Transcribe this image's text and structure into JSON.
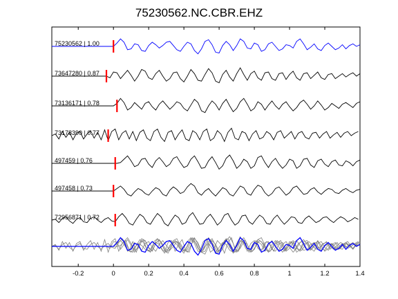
{
  "chart_data": {
    "type": "line",
    "title": "75230562.NC.CBR.EHZ",
    "xlabel": "",
    "ylabel": "",
    "xlim": [
      -0.35,
      1.4
    ],
    "xticks": [
      -0.2,
      0,
      0.2,
      0.4,
      0.6,
      0.8,
      1,
      1.2,
      1.4
    ],
    "xtick_labels": [
      "-0.2",
      "0",
      "0.2",
      "0.4",
      "0.6",
      "0.8",
      "1",
      "1.2",
      "1.4"
    ],
    "grid": false,
    "colors": {
      "primary": "#0000ff",
      "trace": "#000000",
      "stack": "#808080",
      "marker": "#ff0000"
    },
    "traces": [
      {
        "label": "75230562 | 1.00",
        "pick_time": 0.0
      },
      {
        "label": "73647280 | 0.87",
        "pick_time": -0.04
      },
      {
        "label": "73136171 | 0.78",
        "pick_time": 0.02
      },
      {
        "label": "73178390 | 0.77",
        "pick_time": -0.03
      },
      {
        "label": "497459 | 0.76",
        "pick_time": 0.01
      },
      {
        "label": "497458 | 0.73",
        "pick_time": 0.0
      },
      {
        "label": "72956871 | 0.72",
        "pick_time": 0.01
      }
    ],
    "series": [
      {
        "x": [
          -0.35,
          -0.3,
          -0.25,
          -0.2,
          -0.15,
          -0.1,
          -0.05,
          0,
          0.02,
          0.04,
          0.06,
          0.08,
          0.1,
          0.12,
          0.14,
          0.16,
          0.18,
          0.2,
          0.22,
          0.24,
          0.26,
          0.28,
          0.3,
          0.32,
          0.34,
          0.36,
          0.38,
          0.4,
          0.42,
          0.44,
          0.46,
          0.48,
          0.5,
          0.52,
          0.54,
          0.56,
          0.58,
          0.6,
          0.62,
          0.64,
          0.66,
          0.68,
          0.7,
          0.72,
          0.74,
          0.76,
          0.78,
          0.8,
          0.82,
          0.84,
          0.86,
          0.88,
          0.9,
          0.92,
          0.94,
          0.96,
          0.98,
          1,
          1.02,
          1.04,
          1.06,
          1.08,
          1.1,
          1.12,
          1.14,
          1.16,
          1.18,
          1.2,
          1.22,
          1.24,
          1.26,
          1.28,
          1.3,
          1.32,
          1.34,
          1.36,
          1.38,
          1.4
        ],
        "y": [
          0,
          0,
          0,
          0,
          0,
          0,
          0,
          0,
          0.4,
          0.9,
          0.5,
          -0.4,
          -0.3,
          0.3,
          0.2,
          -0.5,
          -0.6,
          0.1,
          0.5,
          0.2,
          -0.2,
          0.1,
          0.5,
          0.6,
          0.1,
          -0.4,
          -0.6,
          0.0,
          0.5,
          0.3,
          -0.5,
          -0.9,
          -0.3,
          0.6,
          0.8,
          0.2,
          -0.7,
          -0.8,
          0.1,
          0.6,
          0.2,
          -0.5,
          0.1,
          0.9,
          0.6,
          -0.2,
          -0.3,
          0.4,
          0.2,
          -0.6,
          -0.4,
          0.3,
          0.5,
          0.0,
          -0.5,
          -0.3,
          0.2,
          0.1,
          -0.2,
          0.6,
          0.9,
          0.3,
          -0.4,
          -0.1,
          0.3,
          -0.3,
          -0.5,
          0.1,
          0.4,
          0.0,
          -0.4,
          -0.2,
          0.2,
          -0.3,
          0.1,
          0.3,
          0.0,
          0.2
        ]
      },
      {
        "x": [
          -0.35,
          -0.3,
          -0.25,
          -0.2,
          -0.15,
          -0.1,
          -0.06,
          -0.04,
          -0.02,
          0,
          0.02,
          0.04,
          0.06,
          0.08,
          0.1,
          0.12,
          0.14,
          0.16,
          0.18,
          0.2,
          0.22,
          0.24,
          0.26,
          0.28,
          0.3,
          0.32,
          0.34,
          0.36,
          0.38,
          0.4,
          0.42,
          0.44,
          0.46,
          0.48,
          0.5,
          0.52,
          0.54,
          0.56,
          0.58,
          0.6,
          0.62,
          0.64,
          0.66,
          0.68,
          0.7,
          0.72,
          0.74,
          0.76,
          0.78,
          0.8,
          0.82,
          0.84,
          0.86,
          0.88,
          0.9,
          0.92,
          0.94,
          0.96,
          0.98,
          1,
          1.02,
          1.04,
          1.06,
          1.08,
          1.1,
          1.12,
          1.14,
          1.16,
          1.18,
          1.2,
          1.22,
          1.24,
          1.26,
          1.28,
          1.3,
          1.32,
          1.34,
          1.36,
          1.38,
          1.4
        ],
        "y": [
          0,
          0,
          0,
          0,
          0,
          0,
          0,
          0,
          -0.2,
          0.5,
          0.4,
          -0.3,
          0.2,
          0.7,
          0.1,
          -0.6,
          0.0,
          0.8,
          0.6,
          -0.2,
          -0.4,
          0.3,
          0.7,
          0.0,
          -0.6,
          -0.3,
          0.4,
          0.5,
          -0.3,
          -0.7,
          0.0,
          0.8,
          0.3,
          -0.5,
          -0.6,
          0.2,
          0.9,
          0.4,
          -0.6,
          -0.8,
          0.2,
          0.7,
          -0.1,
          -0.6,
          0.3,
          1.0,
          0.2,
          -0.5,
          0.3,
          0.6,
          -0.2,
          -0.5,
          0.4,
          0.5,
          -0.3,
          -0.5,
          0.3,
          0.4,
          -0.4,
          0.2,
          0.6,
          -0.2,
          -0.5,
          0.3,
          0.4,
          -0.3,
          0.1,
          0.5,
          -0.2,
          -0.4,
          0.2,
          0.3,
          -0.3,
          0.0,
          0.3,
          -0.1,
          0.2,
          0.4,
          0.0,
          0.3
        ]
      },
      {
        "x": [
          -0.35,
          -0.3,
          -0.25,
          -0.2,
          -0.15,
          -0.1,
          -0.05,
          0,
          0.02,
          0.04,
          0.06,
          0.08,
          0.1,
          0.12,
          0.14,
          0.16,
          0.18,
          0.2,
          0.22,
          0.24,
          0.26,
          0.28,
          0.3,
          0.32,
          0.34,
          0.36,
          0.38,
          0.4,
          0.42,
          0.44,
          0.46,
          0.48,
          0.5,
          0.52,
          0.54,
          0.56,
          0.58,
          0.6,
          0.62,
          0.64,
          0.66,
          0.68,
          0.7,
          0.72,
          0.74,
          0.76,
          0.78,
          0.8,
          0.82,
          0.84,
          0.86,
          0.88,
          0.9,
          0.92,
          0.94,
          0.96,
          0.98,
          1,
          1.02,
          1.04,
          1.06,
          1.08,
          1.1,
          1.12,
          1.14,
          1.16,
          1.18,
          1.2,
          1.22,
          1.24,
          1.26,
          1.28,
          1.3,
          1.32,
          1.34,
          1.36,
          1.38,
          1.4
        ],
        "y": [
          0,
          0,
          0,
          0,
          0,
          0,
          0,
          0,
          0.3,
          0.9,
          0.4,
          -0.5,
          -0.2,
          0.4,
          0.0,
          -0.4,
          0.3,
          0.5,
          -0.1,
          -0.5,
          0.2,
          0.6,
          0.1,
          -0.4,
          0.0,
          0.5,
          0.3,
          -0.3,
          -0.6,
          0.1,
          0.8,
          0.4,
          -0.6,
          -0.8,
          0.0,
          0.6,
          0.2,
          -0.5,
          0.3,
          0.8,
          0.0,
          -0.7,
          -0.3,
          0.5,
          0.9,
          0.2,
          -0.6,
          -0.3,
          0.5,
          0.2,
          -0.5,
          0.1,
          0.6,
          0.0,
          -0.4,
          0.2,
          0.5,
          -0.1,
          -0.6,
          -0.2,
          0.4,
          0.7,
          0.2,
          -0.4,
          0.0,
          0.6,
          0.1,
          -0.5,
          -0.2,
          0.3,
          0.0,
          -0.3,
          0.2,
          0.4,
          0.1,
          -0.2,
          0.3,
          0.5
        ]
      },
      {
        "x": [
          -0.35,
          -0.33,
          -0.31,
          -0.29,
          -0.27,
          -0.25,
          -0.23,
          -0.21,
          -0.19,
          -0.17,
          -0.15,
          -0.13,
          -0.11,
          -0.09,
          -0.07,
          -0.05,
          -0.03,
          -0.01,
          0.01,
          0.03,
          0.05,
          0.07,
          0.09,
          0.11,
          0.13,
          0.15,
          0.17,
          0.19,
          0.21,
          0.23,
          0.25,
          0.27,
          0.29,
          0.31,
          0.33,
          0.35,
          0.37,
          0.39,
          0.41,
          0.43,
          0.45,
          0.47,
          0.49,
          0.51,
          0.53,
          0.55,
          0.57,
          0.59,
          0.61,
          0.63,
          0.65,
          0.67,
          0.69,
          0.71,
          0.73,
          0.75,
          0.77,
          0.79,
          0.81,
          0.83,
          0.85,
          0.87,
          0.89,
          0.91,
          0.93,
          0.95,
          0.97,
          0.99,
          1.01,
          1.03,
          1.05,
          1.07,
          1.09,
          1.11,
          1.13,
          1.15,
          1.17,
          1.19,
          1.21,
          1.23,
          1.25,
          1.27,
          1.29,
          1.31,
          1.33,
          1.35,
          1.37,
          1.39
        ],
        "y": [
          0.0,
          0.2,
          -0.4,
          0.5,
          -0.2,
          0.4,
          -0.5,
          0.3,
          0.5,
          -0.4,
          0.2,
          0.6,
          -0.3,
          0.4,
          -0.5,
          0.7,
          -0.6,
          0.5,
          0.8,
          -0.5,
          0.3,
          0.6,
          -0.4,
          0.5,
          -0.6,
          0.4,
          0.7,
          -0.3,
          -0.6,
          0.5,
          0.8,
          -0.2,
          -0.7,
          0.4,
          0.6,
          -0.5,
          0.2,
          0.7,
          -0.4,
          -0.6,
          0.6,
          0.3,
          -0.5,
          0.5,
          0.8,
          -0.6,
          -0.3,
          0.6,
          0.2,
          -0.7,
          0.4,
          0.9,
          -0.3,
          -0.5,
          0.5,
          0.3,
          -0.6,
          0.2,
          0.6,
          -0.4,
          -0.2,
          0.5,
          0.2,
          -0.5,
          0.4,
          0.6,
          -0.3,
          0.1,
          0.5,
          -0.4,
          0.3,
          0.5,
          -0.2,
          -0.4,
          0.3,
          0.4,
          -0.3,
          0.2,
          0.5,
          -0.3,
          0.1,
          0.4,
          -0.2,
          0.3,
          0.5,
          0.0,
          0.3,
          0.5
        ]
      },
      {
        "x": [
          -0.35,
          -0.3,
          -0.25,
          -0.2,
          -0.15,
          -0.1,
          -0.05,
          0,
          0.02,
          0.04,
          0.06,
          0.08,
          0.1,
          0.12,
          0.14,
          0.16,
          0.18,
          0.2,
          0.22,
          0.24,
          0.26,
          0.28,
          0.3,
          0.32,
          0.34,
          0.36,
          0.38,
          0.4,
          0.42,
          0.44,
          0.46,
          0.48,
          0.5,
          0.52,
          0.54,
          0.56,
          0.58,
          0.6,
          0.62,
          0.64,
          0.66,
          0.68,
          0.7,
          0.72,
          0.74,
          0.76,
          0.78,
          0.8,
          0.82,
          0.84,
          0.86,
          0.88,
          0.9,
          0.92,
          0.94,
          0.96,
          0.98,
          1,
          1.02,
          1.04,
          1.06,
          1.08,
          1.1,
          1.12,
          1.14,
          1.16,
          1.18,
          1.2,
          1.22,
          1.24,
          1.26,
          1.28,
          1.3,
          1.32,
          1.34,
          1.36,
          1.38,
          1.4
        ],
        "y": [
          0,
          0,
          0,
          0,
          0,
          0,
          0,
          0,
          0,
          0.1,
          0.5,
          0.9,
          0.3,
          -0.4,
          -0.2,
          0.5,
          0.6,
          -0.1,
          -0.5,
          0.3,
          0.7,
          0.2,
          -0.4,
          -0.1,
          0.6,
          0.8,
          0.1,
          -0.5,
          -0.3,
          0.5,
          0.9,
          0.2,
          -0.6,
          -0.5,
          0.3,
          0.8,
          0.1,
          -0.7,
          -0.3,
          0.6,
          1.0,
          0.3,
          -0.6,
          -0.2,
          0.5,
          0.2,
          -0.6,
          -0.3,
          0.7,
          0.9,
          0.1,
          -0.5,
          0.2,
          0.6,
          -0.1,
          -0.6,
          -0.2,
          0.5,
          0.3,
          -0.6,
          -0.3,
          0.5,
          0.6,
          -0.2,
          -0.5,
          0.3,
          0.5,
          -0.1,
          -0.4,
          0.2,
          0.4,
          -0.2,
          -0.3,
          0.3,
          0.1,
          -0.3,
          0.2,
          0.4
        ]
      },
      {
        "x": [
          -0.35,
          -0.3,
          -0.25,
          -0.2,
          -0.15,
          -0.1,
          -0.05,
          0,
          0.02,
          0.04,
          0.06,
          0.08,
          0.1,
          0.12,
          0.14,
          0.16,
          0.18,
          0.2,
          0.22,
          0.24,
          0.26,
          0.28,
          0.3,
          0.32,
          0.34,
          0.36,
          0.38,
          0.4,
          0.42,
          0.44,
          0.46,
          0.48,
          0.5,
          0.52,
          0.54,
          0.56,
          0.58,
          0.6,
          0.62,
          0.64,
          0.66,
          0.68,
          0.7,
          0.72,
          0.74,
          0.76,
          0.78,
          0.8,
          0.82,
          0.84,
          0.86,
          0.88,
          0.9,
          0.92,
          0.94,
          0.96,
          0.98,
          1,
          1.02,
          1.04,
          1.06,
          1.08,
          1.1,
          1.12,
          1.14,
          1.16,
          1.18,
          1.2,
          1.22,
          1.24,
          1.26,
          1.28,
          1.3,
          1.32,
          1.34,
          1.36,
          1.38,
          1.4
        ],
        "y": [
          0,
          0,
          0,
          0,
          0,
          0,
          0,
          0,
          0.3,
          0.6,
          0.2,
          -0.4,
          -0.6,
          -0.1,
          0.3,
          0.1,
          -0.3,
          -0.5,
          0.0,
          0.4,
          0.2,
          -0.4,
          -0.6,
          0.1,
          0.5,
          0.2,
          -0.3,
          -0.1,
          0.5,
          0.9,
          0.6,
          -0.2,
          -0.5,
          0.0,
          0.3,
          -0.2,
          -0.6,
          -0.1,
          0.4,
          0.2,
          -0.4,
          -0.6,
          0.0,
          0.6,
          0.4,
          -0.3,
          -0.5,
          0.2,
          0.7,
          0.5,
          -0.2,
          -0.6,
          -0.3,
          0.3,
          0.5,
          0.0,
          -0.5,
          -0.2,
          0.4,
          0.6,
          0.1,
          -0.4,
          -0.3,
          0.2,
          0.4,
          -0.1,
          -0.4,
          0.0,
          0.3,
          0.2,
          -0.2,
          -0.3,
          0.1,
          0.3,
          0.0,
          -0.2,
          0.1,
          0.2
        ]
      },
      {
        "x": [
          -0.35,
          -0.33,
          -0.31,
          -0.29,
          -0.27,
          -0.25,
          -0.23,
          -0.21,
          -0.19,
          -0.17,
          -0.15,
          -0.13,
          -0.11,
          -0.09,
          -0.07,
          -0.05,
          -0.03,
          -0.01,
          0.01,
          0.03,
          0.05,
          0.07,
          0.09,
          0.11,
          0.13,
          0.15,
          0.17,
          0.19,
          0.21,
          0.23,
          0.25,
          0.27,
          0.29,
          0.31,
          0.33,
          0.35,
          0.37,
          0.39,
          0.41,
          0.43,
          0.45,
          0.47,
          0.49,
          0.51,
          0.53,
          0.55,
          0.57,
          0.59,
          0.61,
          0.63,
          0.65,
          0.67,
          0.69,
          0.71,
          0.73,
          0.75,
          0.77,
          0.79,
          0.81,
          0.83,
          0.85,
          0.87,
          0.89,
          0.91,
          0.93,
          0.95,
          0.97,
          0.99,
          1.01,
          1.03,
          1.05,
          1.07,
          1.09,
          1.11,
          1.13,
          1.15,
          1.17,
          1.19,
          1.21,
          1.23,
          1.25,
          1.27,
          1.29,
          1.31,
          1.33,
          1.35,
          1.37,
          1.39
        ],
        "y": [
          0.0,
          0.1,
          -0.3,
          0.2,
          0.4,
          -0.1,
          -0.4,
          0.1,
          0.3,
          -0.2,
          -0.3,
          0.2,
          0.4,
          0.0,
          -0.3,
          0.1,
          0.3,
          -0.1,
          -0.2,
          0.4,
          0.8,
          0.3,
          -0.4,
          -0.6,
          0.1,
          0.7,
          0.4,
          -0.3,
          -0.5,
          0.2,
          0.8,
          0.4,
          -0.4,
          -0.7,
          0.0,
          0.6,
          0.3,
          -0.5,
          -0.3,
          0.5,
          0.9,
          0.2,
          -0.5,
          -0.4,
          0.3,
          0.7,
          0.1,
          -0.6,
          -0.2,
          0.6,
          0.8,
          0.0,
          -0.6,
          -0.3,
          0.5,
          0.6,
          -0.2,
          -0.5,
          0.1,
          0.6,
          0.3,
          -0.4,
          -0.5,
          0.2,
          0.6,
          0.0,
          -0.5,
          -0.1,
          0.4,
          0.3,
          -0.3,
          -0.4,
          0.2,
          0.5,
          0.1,
          -0.3,
          -0.1,
          0.3,
          0.4,
          0.0,
          -0.3,
          0.1,
          0.4,
          0.2,
          -0.2,
          0.0,
          0.3,
          0.1
        ]
      }
    ]
  }
}
